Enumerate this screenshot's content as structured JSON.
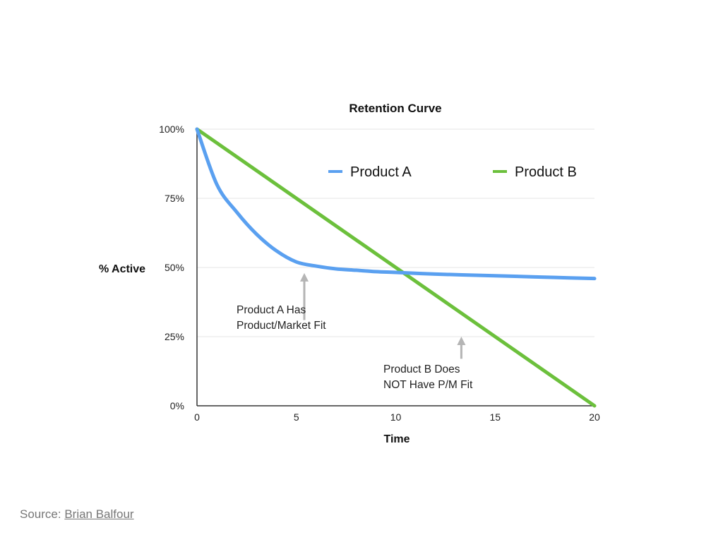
{
  "chart_data": {
    "type": "line",
    "title": "Retention Curve",
    "xlabel": "Time",
    "ylabel": "% Active",
    "xlim": [
      0,
      20
    ],
    "ylim": [
      0,
      100
    ],
    "x_ticks": [
      0,
      5,
      10,
      15,
      20
    ],
    "x_tick_labels": [
      "0",
      "5",
      "10",
      "15",
      "20"
    ],
    "y_ticks": [
      0,
      25,
      50,
      75,
      100
    ],
    "y_tick_labels": [
      "0%",
      "25%",
      "50%",
      "75%",
      "100%"
    ],
    "grid": true,
    "legend": "top-right",
    "series": [
      {
        "name": "Product A",
        "color": "#5aa0f0",
        "x": [
          0,
          1,
          2,
          3,
          4,
          5,
          6,
          7,
          8,
          9,
          10,
          12,
          14,
          16,
          18,
          20
        ],
        "values": [
          100,
          80,
          70,
          62,
          56,
          52,
          50.5,
          49.5,
          49,
          48.5,
          48.2,
          47.6,
          47.2,
          46.8,
          46.4,
          46
        ]
      },
      {
        "name": "Product B",
        "color": "#6cc03c",
        "x": [
          0,
          20
        ],
        "values": [
          100,
          0
        ]
      }
    ],
    "annotations": [
      {
        "lines": [
          "Product A Has",
          "Product/Market Fit"
        ],
        "arrow_x": 5.4,
        "arrow_from_y": 31,
        "arrow_to_y": 48
      },
      {
        "lines": [
          "Product B Does",
          "NOT Have P/M Fit"
        ],
        "arrow_x": 13.3,
        "arrow_from_y": 17,
        "arrow_to_y": 25
      }
    ]
  },
  "footer": {
    "source_prefix": "Source: ",
    "source_author": "Brian Balfour"
  }
}
